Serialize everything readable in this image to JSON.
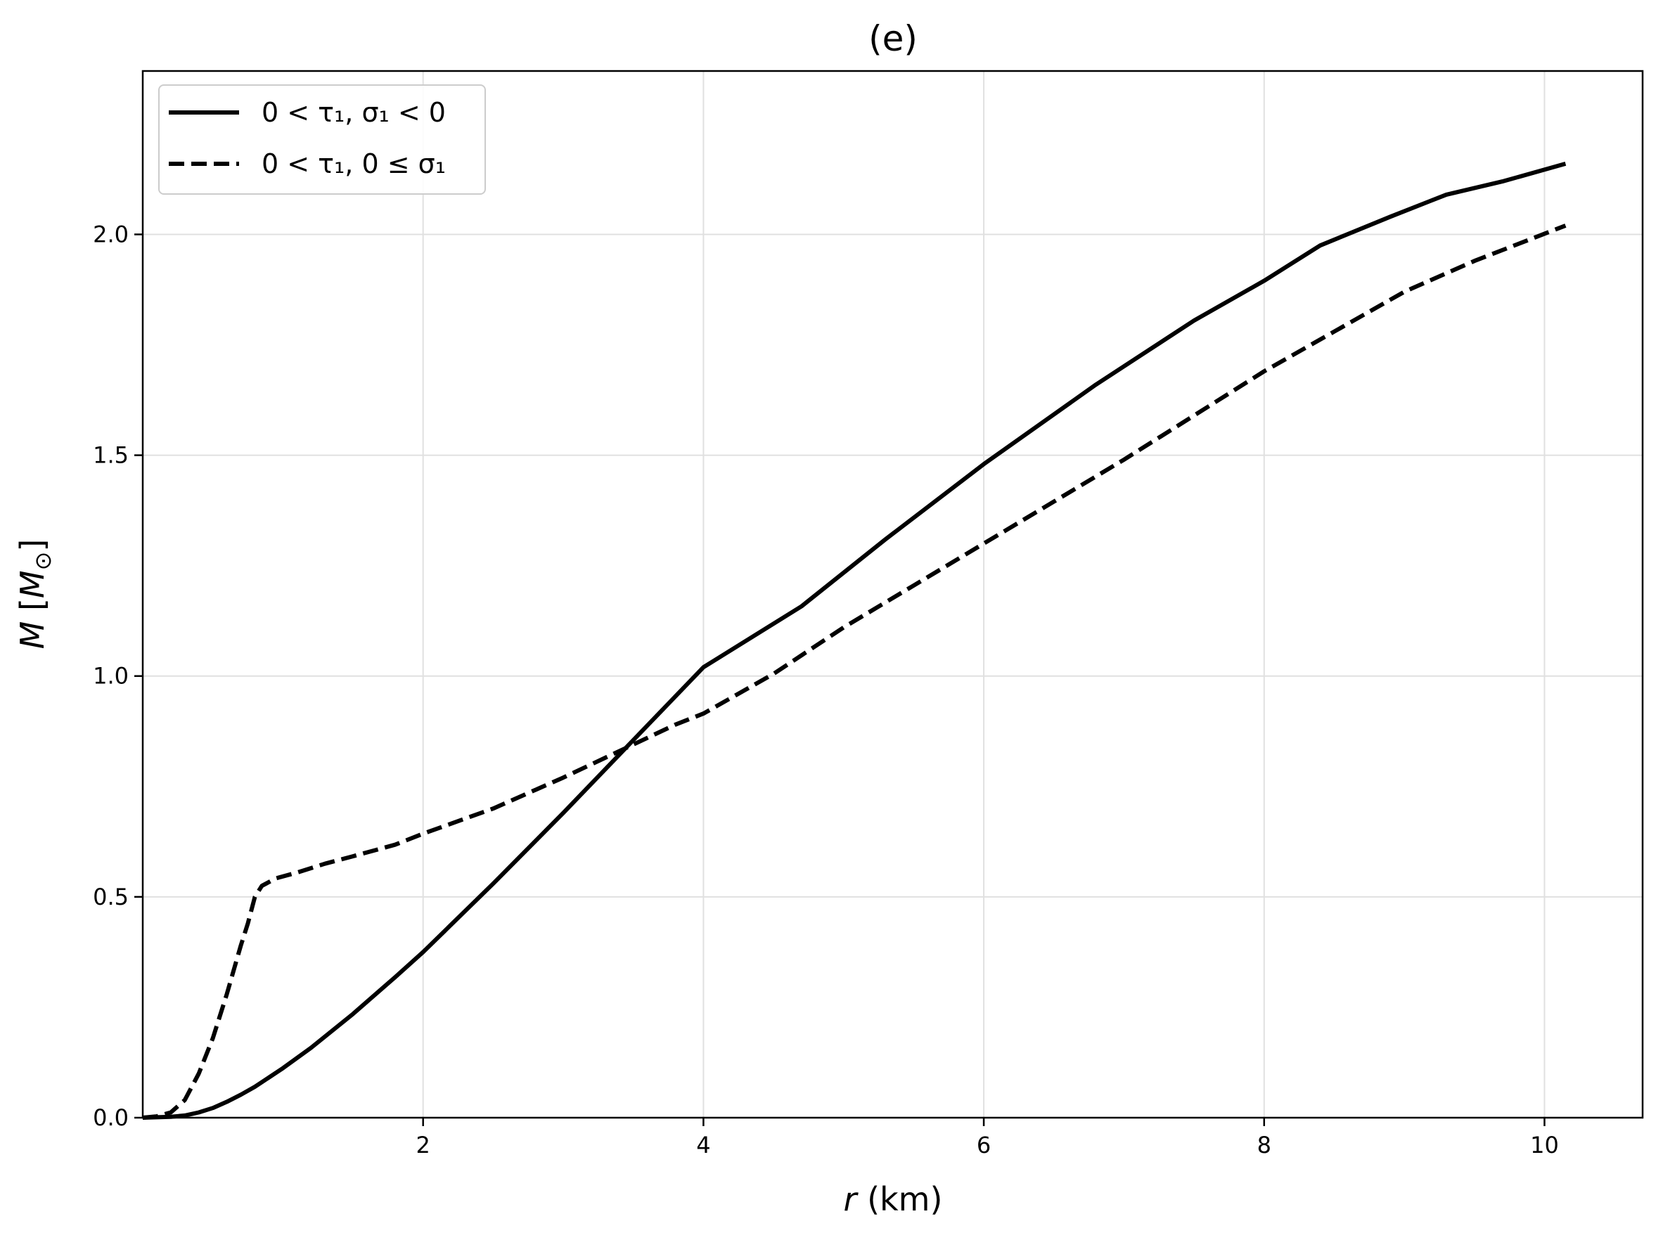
{
  "chart_data": {
    "type": "line",
    "title": "(e)",
    "xlabel_var": "r",
    "xlabel_unit": " (km)",
    "ylabel_var": "M",
    "ylabel_open": " [",
    "ylabel_unit": "M",
    "ylabel_sub": "⊙",
    "ylabel_close": "]",
    "xlim": [
      0.0,
      10.7
    ],
    "ylim": [
      0.0,
      2.37
    ],
    "xticks": [
      2,
      4,
      6,
      8,
      10
    ],
    "xtick_labels": [
      "2",
      "4",
      "6",
      "8",
      "10"
    ],
    "yticks": [
      0.0,
      0.5,
      1.0,
      1.5,
      2.0
    ],
    "ytick_labels": [
      "0.0",
      "0.5",
      "1.0",
      "1.5",
      "2.0"
    ],
    "grid": true,
    "legend_position": "top-left",
    "series": [
      {
        "name": "0 < τ₁, σ₁ < 0",
        "style": "solid",
        "color": "#000000",
        "x": [
          0.0,
          0.2,
          0.3,
          0.4,
          0.5,
          0.6,
          0.7,
          0.8,
          1.0,
          1.2,
          1.5,
          1.8,
          2.0,
          2.5,
          3.0,
          3.5,
          4.0,
          4.7,
          5.3,
          6.0,
          6.8,
          7.5,
          8.0,
          8.4,
          8.9,
          9.3,
          9.7,
          10.15
        ],
        "y": [
          0.0,
          0.002,
          0.005,
          0.012,
          0.022,
          0.036,
          0.052,
          0.07,
          0.112,
          0.158,
          0.235,
          0.318,
          0.375,
          0.53,
          0.69,
          0.855,
          1.02,
          1.158,
          1.31,
          1.48,
          1.66,
          1.805,
          1.895,
          1.975,
          2.04,
          2.09,
          2.12,
          2.16
        ]
      },
      {
        "name": "0 < τ₁, 0 ≤ σ₁",
        "style": "dashed",
        "color": "#000000",
        "x": [
          0.0,
          0.1,
          0.2,
          0.3,
          0.4,
          0.5,
          0.6,
          0.7,
          0.75,
          0.8,
          0.85,
          0.95,
          1.1,
          1.3,
          1.5,
          1.8,
          2.0,
          2.5,
          3.0,
          3.5,
          3.8,
          4.0,
          4.5,
          5.0,
          5.5,
          6.0,
          6.5,
          7.0,
          7.5,
          8.0,
          8.5,
          9.0,
          9.5,
          10.15
        ],
        "y": [
          0.0,
          0.003,
          0.012,
          0.04,
          0.1,
          0.18,
          0.28,
          0.39,
          0.44,
          0.5,
          0.525,
          0.542,
          0.555,
          0.575,
          0.592,
          0.618,
          0.643,
          0.7,
          0.77,
          0.845,
          0.89,
          0.915,
          1.005,
          1.11,
          1.205,
          1.3,
          1.395,
          1.49,
          1.59,
          1.69,
          1.78,
          1.87,
          1.94,
          2.02
        ]
      }
    ]
  }
}
